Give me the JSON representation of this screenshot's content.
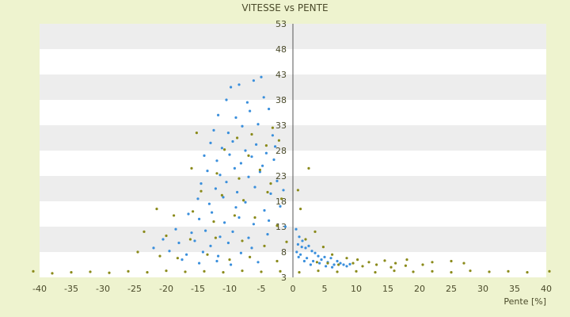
{
  "chart_data": {
    "type": "scatter",
    "title": "VITESSE vs PENTE",
    "xlabel": "Pente [%]",
    "ylabel": "",
    "xlim": [
      -40,
      40
    ],
    "ylim": [
      3,
      53
    ],
    "xticks": [
      -40,
      -35,
      -30,
      -25,
      -20,
      -15,
      -10,
      -5,
      0,
      5,
      10,
      15,
      20,
      25,
      30,
      35,
      40
    ],
    "yticks": [
      3,
      8,
      13,
      18,
      23,
      28,
      33,
      38,
      43,
      48,
      53
    ],
    "grid": "horizontal alternating bands",
    "legend": "none",
    "series_colors": [
      "#3a8fdc",
      "#8a8a1a"
    ],
    "series": [
      {
        "points": [
          [
            -9.8,
            40.5
          ],
          [
            -8.5,
            41.0
          ],
          [
            -6.2,
            41.8
          ],
          [
            -5.0,
            42.5
          ],
          [
            -10.5,
            38.0
          ],
          [
            -7.2,
            37.5
          ],
          [
            -4.6,
            38.5
          ],
          [
            -11.8,
            35.0
          ],
          [
            -9.0,
            34.5
          ],
          [
            -6.8,
            35.8
          ],
          [
            -3.8,
            36.2
          ],
          [
            -12.5,
            32.0
          ],
          [
            -10.2,
            31.5
          ],
          [
            -8.0,
            32.8
          ],
          [
            -5.5,
            33.2
          ],
          [
            -3.2,
            31.0
          ],
          [
            -13.0,
            29.5
          ],
          [
            -11.2,
            28.5
          ],
          [
            -9.5,
            29.8
          ],
          [
            -7.5,
            28.0
          ],
          [
            -5.8,
            29.2
          ],
          [
            -4.2,
            27.5
          ],
          [
            -2.8,
            28.8
          ],
          [
            -14.0,
            27.0
          ],
          [
            -12.0,
            26.0
          ],
          [
            -10.0,
            27.2
          ],
          [
            -8.2,
            25.5
          ],
          [
            -6.5,
            26.8
          ],
          [
            -4.8,
            25.0
          ],
          [
            -3.0,
            26.2
          ],
          [
            -13.5,
            24.0
          ],
          [
            -11.5,
            23.2
          ],
          [
            -9.2,
            24.5
          ],
          [
            -7.0,
            22.8
          ],
          [
            -5.2,
            23.8
          ],
          [
            -2.5,
            22.0
          ],
          [
            -14.5,
            21.5
          ],
          [
            -12.2,
            20.5
          ],
          [
            -10.5,
            21.8
          ],
          [
            -8.8,
            19.8
          ],
          [
            -6.0,
            20.8
          ],
          [
            -3.5,
            19.5
          ],
          [
            -1.5,
            20.2
          ],
          [
            -15.0,
            18.5
          ],
          [
            -13.2,
            17.5
          ],
          [
            -11.0,
            18.8
          ],
          [
            -9.0,
            16.8
          ],
          [
            -7.5,
            17.8
          ],
          [
            -4.5,
            16.2
          ],
          [
            -2.0,
            17.0
          ],
          [
            -16.5,
            15.5
          ],
          [
            -14.8,
            14.5
          ],
          [
            -12.8,
            15.8
          ],
          [
            -10.8,
            13.8
          ],
          [
            -8.5,
            14.8
          ],
          [
            -6.2,
            13.5
          ],
          [
            -3.8,
            14.2
          ],
          [
            -1.2,
            13.0
          ],
          [
            -18.5,
            12.5
          ],
          [
            -16.0,
            11.8
          ],
          [
            -13.8,
            12.2
          ],
          [
            -11.5,
            11.0
          ],
          [
            -9.5,
            12.0
          ],
          [
            -7.0,
            10.8
          ],
          [
            -4.0,
            11.5
          ],
          [
            -20.5,
            10.5
          ],
          [
            -18.0,
            9.8
          ],
          [
            -15.5,
            10.2
          ],
          [
            -13.0,
            9.2
          ],
          [
            -10.2,
            9.8
          ],
          [
            -6.5,
            8.8
          ],
          [
            -22.0,
            8.8
          ],
          [
            -19.5,
            8.2
          ],
          [
            -16.8,
            7.5
          ],
          [
            -14.2,
            8.0
          ],
          [
            -11.8,
            7.2
          ],
          [
            -8.2,
            7.8
          ],
          [
            -17.5,
            6.5
          ],
          [
            -14.8,
            5.8
          ],
          [
            -12.0,
            6.2
          ],
          [
            -9.8,
            5.5
          ],
          [
            -5.5,
            6.0
          ],
          [
            0.5,
            12.5
          ],
          [
            1.0,
            11.0
          ],
          [
            0.8,
            9.5
          ],
          [
            1.5,
            10.2
          ],
          [
            2.0,
            8.8
          ],
          [
            0.6,
            8.0
          ],
          [
            2.5,
            9.2
          ],
          [
            3.0,
            8.2
          ],
          [
            1.2,
            7.5
          ],
          [
            3.5,
            7.8
          ],
          [
            4.0,
            7.2
          ],
          [
            2.2,
            6.8
          ],
          [
            4.5,
            6.5
          ],
          [
            5.0,
            7.0
          ],
          [
            3.2,
            6.2
          ],
          [
            5.5,
            6.0
          ],
          [
            6.0,
            6.8
          ],
          [
            4.2,
            5.8
          ],
          [
            6.5,
            5.5
          ],
          [
            7.0,
            6.2
          ],
          [
            5.2,
            5.2
          ],
          [
            7.5,
            5.8
          ],
          [
            8.0,
            5.5
          ],
          [
            6.2,
            5.0
          ],
          [
            8.5,
            5.2
          ],
          [
            9.0,
            5.6
          ],
          [
            2.8,
            5.5
          ],
          [
            1.8,
            6.2
          ],
          [
            0.9,
            7.0
          ],
          [
            1.4,
            9.0
          ]
        ]
      },
      {
        "points": [
          [
            -15.2,
            31.5
          ],
          [
            -8.8,
            30.5
          ],
          [
            -6.5,
            31.2
          ],
          [
            -3.2,
            32.5
          ],
          [
            -10.8,
            28.2
          ],
          [
            -7.0,
            27.0
          ],
          [
            -4.2,
            29.0
          ],
          [
            -2.2,
            30.0
          ],
          [
            -16.0,
            24.5
          ],
          [
            -12.0,
            23.5
          ],
          [
            -8.5,
            22.5
          ],
          [
            -5.2,
            24.2
          ],
          [
            -3.5,
            21.5
          ],
          [
            -14.5,
            20.0
          ],
          [
            -11.2,
            19.2
          ],
          [
            -7.8,
            18.2
          ],
          [
            -4.0,
            19.8
          ],
          [
            -1.8,
            18.5
          ],
          [
            -21.5,
            16.5
          ],
          [
            -18.8,
            15.2
          ],
          [
            -15.8,
            16.0
          ],
          [
            -12.5,
            14.0
          ],
          [
            -9.2,
            15.2
          ],
          [
            -6.0,
            14.8
          ],
          [
            -2.5,
            13.2
          ],
          [
            -23.5,
            12.0
          ],
          [
            -20.0,
            11.2
          ],
          [
            -16.2,
            10.5
          ],
          [
            -12.2,
            10.8
          ],
          [
            -8.0,
            10.2
          ],
          [
            -4.5,
            9.2
          ],
          [
            -1.0,
            10.0
          ],
          [
            -24.5,
            8.0
          ],
          [
            -21.0,
            7.2
          ],
          [
            -18.2,
            6.8
          ],
          [
            -13.5,
            7.5
          ],
          [
            -10.0,
            6.5
          ],
          [
            -6.8,
            7.0
          ],
          [
            -2.5,
            6.2
          ],
          [
            2.5,
            24.5
          ],
          [
            0.8,
            20.2
          ],
          [
            1.2,
            16.5
          ],
          [
            3.5,
            12.0
          ],
          [
            2.0,
            10.5
          ],
          [
            4.8,
            9.0
          ],
          [
            6.2,
            7.5
          ],
          [
            8.5,
            6.8
          ],
          [
            10.2,
            6.5
          ],
          [
            12.0,
            6.0
          ],
          [
            14.5,
            6.3
          ],
          [
            16.2,
            5.8
          ],
          [
            18.0,
            6.5
          ],
          [
            20.5,
            5.5
          ],
          [
            22.0,
            6.0
          ],
          [
            25.0,
            6.2
          ],
          [
            27.0,
            5.8
          ],
          [
            11.0,
            5.2
          ],
          [
            13.2,
            5.5
          ],
          [
            15.5,
            5.0
          ],
          [
            17.8,
            5.3
          ],
          [
            9.5,
            5.8
          ],
          [
            7.2,
            5.5
          ],
          [
            5.5,
            5.8
          ],
          [
            3.8,
            6.0
          ],
          [
            -41.0,
            4.2
          ],
          [
            -38.0,
            3.8
          ],
          [
            -35.0,
            4.0
          ],
          [
            -32.0,
            4.1
          ],
          [
            -29.0,
            3.9
          ],
          [
            -26.0,
            4.2
          ],
          [
            -23.0,
            4.0
          ],
          [
            -20.0,
            4.3
          ],
          [
            -17.0,
            4.1
          ],
          [
            -14.0,
            4.2
          ],
          [
            -11.0,
            4.0
          ],
          [
            -8.0,
            4.3
          ],
          [
            -5.0,
            4.1
          ],
          [
            -2.0,
            4.2
          ],
          [
            1.0,
            4.0
          ],
          [
            4.0,
            4.3
          ],
          [
            7.0,
            4.1
          ],
          [
            10.0,
            4.2
          ],
          [
            13.0,
            4.0
          ],
          [
            16.0,
            4.3
          ],
          [
            19.0,
            4.1
          ],
          [
            22.0,
            4.2
          ],
          [
            25.0,
            4.0
          ],
          [
            28.0,
            4.3
          ],
          [
            31.0,
            4.1
          ],
          [
            34.0,
            4.2
          ],
          [
            37.0,
            4.0
          ],
          [
            40.5,
            4.2
          ]
        ]
      }
    ]
  }
}
